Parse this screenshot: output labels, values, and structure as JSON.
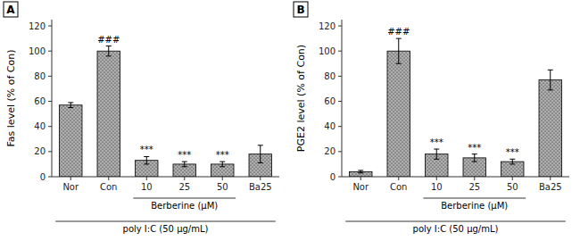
{
  "chart_data": [
    {
      "type": "bar",
      "title": "A",
      "y_label": "Fas level (% of Con)",
      "categories": [
        "Nor",
        "Con",
        "10",
        "25",
        "50",
        "Ba25"
      ],
      "values": [
        57,
        100,
        13,
        10,
        10,
        18
      ],
      "errors": [
        2,
        4,
        3,
        2,
        2,
        7
      ],
      "significance": [
        null,
        "###",
        "***",
        "***",
        "***",
        null
      ],
      "brackets": [
        {
          "text": "Berberine (μM)",
          "from": "10",
          "to": "50"
        },
        {
          "text": "poly I:C (50 μg/mL)",
          "from": "Nor",
          "to": "Ba25"
        }
      ],
      "color": "#b0b0b0",
      "ylim": [
        0,
        125
      ],
      "yticks": [
        0,
        20,
        40,
        60,
        80,
        100,
        120
      ],
      "grid": false
    },
    {
      "type": "bar",
      "title": "B",
      "y_label": "PGE2 level (% of Con)",
      "categories": [
        "Nor",
        "Con",
        "10",
        "25",
        "50",
        "Ba25"
      ],
      "values": [
        4,
        100,
        18,
        15,
        12,
        77
      ],
      "errors": [
        1,
        10,
        4,
        3,
        2,
        8
      ],
      "significance": [
        null,
        "###",
        "***",
        "***",
        "***",
        null
      ],
      "brackets": [
        {
          "text": "Berberine (μM)",
          "from": "10",
          "to": "50"
        },
        {
          "text": "poly I:C (50 μg/mL)",
          "from": "Nor",
          "to": "Ba25"
        }
      ],
      "color": "#b0b0b0",
      "ylim": [
        0,
        125
      ],
      "yticks": [
        0,
        20,
        40,
        60,
        80,
        100,
        120
      ],
      "grid": false
    }
  ]
}
